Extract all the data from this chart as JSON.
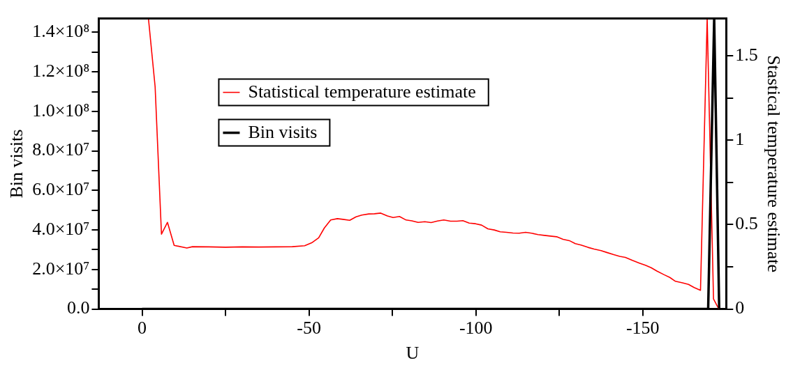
{
  "chart_data": {
    "type": "line",
    "xlabel": "U",
    "ylabel": "Bin visits",
    "y2label": "Stastical temperature estimate",
    "xlim": [
      13,
      -175
    ],
    "xticks": [
      0,
      {
        "value": -25,
        "label": null
      },
      -50,
      {
        "value": -75,
        "label": null
      },
      -100,
      {
        "value": -125,
        "label": null
      },
      -150
    ],
    "ylim": [
      0,
      147000000
    ],
    "yticks": [
      {
        "value": 0,
        "label": "0.0"
      },
      {
        "value": 10000000,
        "label": null
      },
      {
        "value": 20000000,
        "label": "2.0×10⁷"
      },
      {
        "value": 30000000,
        "label": null
      },
      {
        "value": 40000000,
        "label": "4.0×10⁷"
      },
      {
        "value": 50000000,
        "label": null
      },
      {
        "value": 60000000,
        "label": "6.0×10⁷"
      },
      {
        "value": 70000000,
        "label": null
      },
      {
        "value": 80000000,
        "label": "8.0×10⁷"
      },
      {
        "value": 90000000,
        "label": null
      },
      {
        "value": 100000000,
        "label": "1.0×10⁸"
      },
      {
        "value": 110000000,
        "label": null
      },
      {
        "value": 120000000,
        "label": "1.2×10⁸"
      },
      {
        "value": 130000000,
        "label": null
      },
      {
        "value": 140000000,
        "label": "1.4×10⁸"
      }
    ],
    "y2lim": [
      0,
      1.72
    ],
    "y2ticks": [
      0,
      {
        "value": 0.25,
        "label": null
      },
      0.5,
      {
        "value": 0.75,
        "label": null
      },
      1,
      {
        "value": 1.25,
        "label": null
      },
      1.5
    ],
    "grid": false,
    "legend": "top left",
    "marker": "none",
    "line_style": "solid",
    "series": [
      {
        "name": "Statistical temperature estimate",
        "color": "#ff0000",
        "axis": "y2",
        "x": [
          -1.9,
          -3.9,
          -5.8,
          -7.6,
          -9.6,
          -13.4,
          -15.1,
          -20,
          -25,
          -30,
          -35,
          -40,
          -45,
          -48.7,
          -50.8,
          -52.9,
          -54.6,
          -56.5,
          -58.5,
          -60.2,
          -62.2,
          -64.1,
          -65.8,
          -67.9,
          -69.6,
          -71.5,
          -73.5,
          -75.2,
          -77.1,
          -79.1,
          -80.8,
          -82.7,
          -84.7,
          -86.6,
          -88.5,
          -90.4,
          -92.4,
          -94.3,
          -96.1,
          -98.0,
          -99.9,
          -101.7,
          -103.6,
          -105.5,
          -107.3,
          -109.2,
          -111.1,
          -113.0,
          -114.9,
          -116.7,
          -118.6,
          -120.5,
          -122.3,
          -124.2,
          -126.1,
          -128.0,
          -129.8,
          -131.5,
          -133.6,
          -135.4,
          -137.5,
          -139.2,
          -141.3,
          -143.1,
          -144.8,
          -146.9,
          -149.0,
          -150.8,
          -152.5,
          -154.2,
          -156.3,
          -158.1,
          -159.8,
          -161.9,
          -163.7,
          -165.4,
          -167.3,
          -169.3,
          -171.2,
          -172.8
        ],
        "values": [
          1.72,
          1.315,
          0.443,
          0.513,
          0.377,
          0.361,
          0.369,
          0.368,
          0.366,
          0.368,
          0.367,
          0.368,
          0.369,
          0.375,
          0.392,
          0.422,
          0.48,
          0.527,
          0.535,
          0.531,
          0.525,
          0.546,
          0.556,
          0.563,
          0.564,
          0.568,
          0.551,
          0.542,
          0.548,
          0.527,
          0.522,
          0.513,
          0.517,
          0.512,
          0.521,
          0.527,
          0.52,
          0.52,
          0.523,
          0.509,
          0.505,
          0.497,
          0.475,
          0.468,
          0.457,
          0.454,
          0.45,
          0.449,
          0.454,
          0.449,
          0.441,
          0.436,
          0.432,
          0.428,
          0.413,
          0.405,
          0.387,
          0.379,
          0.365,
          0.355,
          0.346,
          0.335,
          0.322,
          0.312,
          0.306,
          0.288,
          0.272,
          0.259,
          0.245,
          0.225,
          0.204,
          0.187,
          0.164,
          0.155,
          0.146,
          0.127,
          0.111,
          1.72,
          0.06,
          0
        ]
      },
      {
        "name": "Bin visits",
        "color": "#000000",
        "x": [
          0,
          -169.6,
          -171.4,
          -172.9
        ],
        "values": [
          0,
          0,
          147000000,
          0
        ]
      }
    ]
  }
}
